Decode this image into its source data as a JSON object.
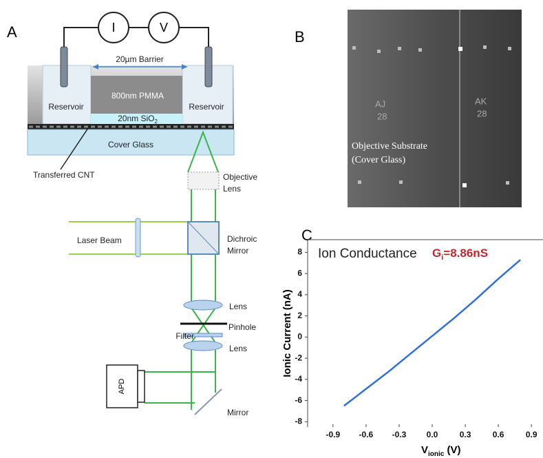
{
  "panel_labels": [
    "A",
    "B",
    "C"
  ],
  "setup": {
    "meters": [
      "I",
      "V"
    ],
    "barrier": "20µm Barrier",
    "pmma": "800nm PMMA",
    "reservoirs": [
      "Reservoir",
      "Reservoir"
    ],
    "sio2": {
      "text": "20nm SiO",
      "sub": "2"
    },
    "cover_glass": "Cover Glass",
    "cnt": "Transferred CNT"
  },
  "optics": {
    "objective": [
      "Objective",
      "Lens"
    ],
    "laser": "Laser Beam",
    "dichroic": [
      "Dichroic",
      "Mirror"
    ],
    "lens_1": "Lens",
    "pinhole": "Pinhole",
    "filter": "Filter",
    "lens_2": "Lens",
    "apd": "APD",
    "mirror": "Mirror"
  },
  "image": {
    "markings": [
      "AJ",
      "28",
      "AK",
      "28"
    ],
    "caption": [
      "Objective Substrate",
      "(Cover Glass)"
    ]
  },
  "chart_data": {
    "type": "line",
    "title": "Ion Conductance",
    "annotation": {
      "symbol": "G",
      "subscript": "i",
      "text": "=8.86nS"
    },
    "x_label": {
      "symbol": "V",
      "subscript": "ionic",
      "text": " (V)"
    },
    "y_label": "Ionic Current (nA)",
    "x": [
      -0.8,
      -0.6,
      -0.4,
      -0.2,
      0,
      0.2,
      0.4,
      0.6,
      0.8
    ],
    "values": [
      -6.5,
      -4.9,
      -3.3,
      -1.6,
      0.1,
      1.8,
      3.6,
      5.5,
      7.3
    ],
    "color": "#2f6fdc",
    "xlim": [
      -1.13,
      0.93
    ],
    "ylim": [
      -8.5,
      9.2
    ],
    "xticks": [
      -0.9,
      -0.6,
      -0.3,
      {
        "value": 0,
        "label": "0.0"
      },
      0.3,
      0.6,
      0.9
    ],
    "yticks": [
      -8,
      -6,
      -4,
      -2,
      0,
      2,
      4,
      6,
      8
    ]
  }
}
